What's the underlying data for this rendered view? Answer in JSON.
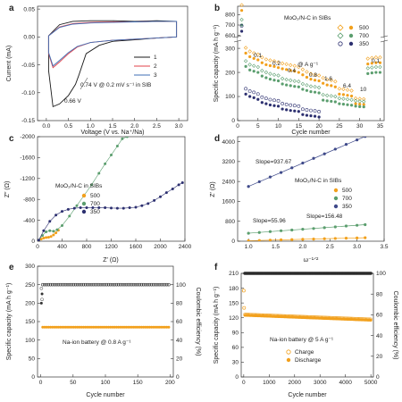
{
  "panels": [
    {
      "id": "a",
      "label": "a",
      "type": "line",
      "xlabel": "Voltage (V vs. Na⁺/Na)",
      "ylabel": "Current (mA)",
      "xlim": [
        -0.2,
        3.2
      ],
      "ylim": [
        -0.15,
        0.055
      ],
      "xticks": [
        0.0,
        0.5,
        1.0,
        1.5,
        2.0,
        2.5,
        3.0
      ],
      "yticks": [
        -0.15,
        -0.1,
        -0.05,
        0.0,
        0.05
      ],
      "ytick_labels": [
        "-0.15",
        "-0.10",
        "-0.05",
        "0.00",
        "0.05"
      ],
      "legend": [
        "1",
        "2",
        "3"
      ],
      "annotations": [
        "0.74 V @ 0.2 mV s⁻¹ in SIB",
        "0.66 V"
      ],
      "series": [
        {
          "name": "1",
          "color": "#1a1a1a",
          "x": [
            0.05,
            0.3,
            0.6,
            1.0,
            1.5,
            2.0,
            2.5,
            2.95,
            2.95,
            2.5,
            2.0,
            1.5,
            1.2,
            0.9,
            0.74,
            0.66,
            0.5,
            0.3,
            0.15,
            0.05
          ],
          "y": [
            0.002,
            0.022,
            0.028,
            0.029,
            0.029,
            0.028,
            0.029,
            0.028,
            0.0,
            -0.002,
            -0.005,
            -0.008,
            -0.015,
            -0.03,
            -0.068,
            -0.085,
            -0.105,
            -0.12,
            -0.125,
            -0.06
          ]
        },
        {
          "name": "2",
          "color": "#e0404a",
          "x": [
            0.05,
            0.3,
            0.6,
            1.0,
            1.5,
            2.0,
            2.5,
            2.95,
            2.95,
            2.5,
            2.0,
            1.5,
            1.0,
            0.7,
            0.5,
            0.3,
            0.15,
            0.05
          ],
          "y": [
            0.002,
            0.018,
            0.024,
            0.026,
            0.027,
            0.027,
            0.028,
            0.028,
            0.0,
            -0.002,
            -0.004,
            -0.006,
            -0.01,
            -0.018,
            -0.03,
            -0.045,
            -0.055,
            -0.03
          ]
        },
        {
          "name": "3",
          "color": "#3f6fb5",
          "x": [
            0.05,
            0.3,
            0.6,
            1.0,
            1.5,
            2.0,
            2.5,
            2.95,
            2.95,
            2.5,
            2.0,
            1.5,
            1.0,
            0.7,
            0.5,
            0.3,
            0.15,
            0.05
          ],
          "y": [
            0.002,
            0.017,
            0.023,
            0.025,
            0.026,
            0.027,
            0.028,
            0.028,
            0.0,
            -0.002,
            -0.004,
            -0.006,
            -0.01,
            -0.017,
            -0.028,
            -0.042,
            -0.052,
            -0.028
          ]
        }
      ]
    },
    {
      "id": "b",
      "label": "b",
      "type": "scatter",
      "xlabel": "Cycle number",
      "ylabel": "Specific capacity (mA h g⁻¹)",
      "xlim": [
        0,
        36
      ],
      "xticks": [
        0,
        5,
        10,
        15,
        20,
        25,
        30,
        35
      ],
      "yticks_lower": [
        0,
        100,
        200,
        300
      ],
      "yticks_upper": [
        600,
        700,
        800
      ],
      "legend_title": "MoO₂/N-C in SIBs",
      "legend": [
        "500",
        "700",
        "350"
      ],
      "rate_label": "@ A g⁻¹",
      "rate_annotations": [
        "0.1",
        "0.2",
        "0.4",
        "0.8",
        "1.6",
        "6.4",
        "10",
        "0.1"
      ],
      "series": [
        {
          "name": "500",
          "color": "#f2a01c",
          "x": [
            1,
            2,
            3,
            4,
            5,
            6,
            7,
            8,
            9,
            10,
            11,
            12,
            13,
            14,
            15,
            16,
            17,
            18,
            19,
            20,
            21,
            22,
            23,
            24,
            25,
            26,
            27,
            28,
            29,
            30,
            31,
            32,
            33,
            34,
            35
          ],
          "y": [
            840,
            280,
            265,
            258,
            252,
            240,
            232,
            228,
            225,
            220,
            215,
            212,
            208,
            205,
            200,
            190,
            180,
            172,
            168,
            165,
            155,
            148,
            145,
            140,
            110,
            108,
            105,
            102,
            70,
            68,
            67,
            235,
            238,
            240,
            240
          ]
        },
        {
          "name": "700",
          "color": "#5b9e6e",
          "x": [
            1,
            2,
            3,
            4,
            5,
            6,
            7,
            8,
            9,
            10,
            11,
            12,
            13,
            14,
            15,
            16,
            17,
            18,
            19,
            20,
            21,
            22,
            23,
            24,
            25,
            26,
            27,
            28,
            29,
            30,
            31,
            32,
            33,
            34,
            35
          ],
          "y": [
            700,
            225,
            210,
            205,
            200,
            185,
            178,
            172,
            168,
            165,
            152,
            148,
            145,
            142,
            140,
            130,
            125,
            120,
            118,
            115,
            85,
            82,
            80,
            78,
            70,
            68,
            66,
            64,
            60,
            58,
            57,
            195,
            198,
            200,
            200
          ]
        },
        {
          "name": "350",
          "color": "#2d3070",
          "x": [
            1,
            2,
            3,
            4,
            5,
            6,
            7,
            8,
            9,
            10,
            11,
            12,
            13,
            14,
            15,
            16,
            17,
            18,
            19,
            20
          ],
          "y": [
            640,
            110,
            100,
            95,
            88,
            75,
            70,
            65,
            62,
            60,
            48,
            45,
            42,
            40,
            38,
            25,
            22,
            20,
            18,
            15
          ]
        }
      ]
    },
    {
      "id": "c",
      "label": "c",
      "type": "scatter",
      "xlabel": "Z′ (Ω)",
      "ylabel": "Z″ (Ω)",
      "xlim": [
        0,
        2400
      ],
      "ylim": [
        0,
        -2000
      ],
      "xticks": [
        0,
        400,
        800,
        1200,
        1600,
        2000,
        2400
      ],
      "yticks": [
        0,
        -400,
        -800,
        -1200,
        -1600,
        -2000
      ],
      "legend_title": "MoO₂/N-C in SIBs",
      "legend": [
        "500",
        "700",
        "350"
      ],
      "series": [
        {
          "name": "500",
          "color": "#f2a01c",
          "x": [
            20,
            60,
            100,
            140,
            180,
            220,
            260,
            300,
            340
          ],
          "y": [
            -10,
            -40,
            -60,
            -70,
            -75,
            -90,
            -120,
            -160,
            -210
          ]
        },
        {
          "name": "700",
          "color": "#5b9e6e",
          "x": [
            20,
            80,
            140,
            200,
            260,
            320,
            400,
            520,
            640,
            760,
            880,
            1000,
            1100,
            1200,
            1300,
            1380,
            1460
          ],
          "y": [
            -20,
            -110,
            -180,
            -200,
            -190,
            -220,
            -300,
            -480,
            -680,
            -880,
            -1080,
            -1300,
            -1480,
            -1650,
            -1820,
            -1960,
            -2000
          ]
        },
        {
          "name": "350",
          "color": "#2d3070",
          "x": [
            20,
            100,
            200,
            300,
            400,
            500,
            600,
            700,
            800,
            900,
            1000,
            1100,
            1200,
            1300,
            1400,
            1500,
            1600,
            1700,
            1800,
            1900,
            2000,
            2100,
            2200,
            2300,
            2360
          ],
          "y": [
            -20,
            -200,
            -380,
            -500,
            -570,
            -610,
            -630,
            -640,
            -640,
            -640,
            -640,
            -640,
            -635,
            -630,
            -630,
            -640,
            -650,
            -680,
            -720,
            -780,
            -850,
            -930,
            -1000,
            -1080,
            -1120
          ]
        }
      ]
    },
    {
      "id": "d",
      "label": "d",
      "type": "line",
      "xlabel": "ω⁻¹ᐟ²",
      "ylabel": "Z′ (Ω)",
      "xlim": [
        0.8,
        3.5
      ],
      "ylim": [
        0,
        4200
      ],
      "xticks": [
        1.0,
        1.5,
        2.0,
        2.5,
        3.0,
        3.5
      ],
      "yticks": [
        0,
        800,
        1600,
        2400,
        3200,
        4000
      ],
      "legend_title": "MoO₂/N-C in SIBs",
      "legend": [
        "500",
        "700",
        "350"
      ],
      "slope_labels": [
        "Slope=937.67",
        "Slope=55.96",
        "Slope=156.48"
      ],
      "series": [
        {
          "name": "500",
          "color": "#f2a01c",
          "x": [
            1.0,
            1.2,
            1.4,
            1.6,
            1.8,
            2.0,
            2.2,
            2.4,
            2.6,
            2.8,
            3.0,
            3.15
          ],
          "y": [
            20,
            30,
            40,
            55,
            65,
            75,
            85,
            100,
            110,
            120,
            130,
            140
          ]
        },
        {
          "name": "700",
          "color": "#5b9e6e",
          "x": [
            1.0,
            1.2,
            1.4,
            1.6,
            1.8,
            2.0,
            2.2,
            2.4,
            2.6,
            2.8,
            3.0,
            3.15
          ],
          "y": [
            320,
            350,
            385,
            420,
            450,
            480,
            510,
            545,
            575,
            610,
            640,
            665
          ]
        },
        {
          "name": "350",
          "color": "#3f4a8a",
          "x": [
            1.0,
            1.2,
            1.4,
            1.6,
            1.8,
            2.0,
            2.2,
            2.4,
            2.6,
            2.8,
            3.0,
            3.15
          ],
          "y": [
            2200,
            2390,
            2580,
            2760,
            2950,
            3140,
            3330,
            3510,
            3700,
            3890,
            4070,
            4210
          ]
        }
      ]
    },
    {
      "id": "e",
      "label": "e",
      "type": "scatter",
      "xlabel": "Cycle number",
      "ylabel": "Specific capacity (mA h g⁻¹)",
      "ylabel_right": "Coulombic efficiency (%)",
      "xlim": [
        -5,
        205
      ],
      "ylim": [
        0,
        300
      ],
      "ylim_right": [
        0,
        120
      ],
      "xticks": [
        0,
        50,
        100,
        150,
        200
      ],
      "yticks": [
        0,
        50,
        100,
        150,
        200,
        250,
        300
      ],
      "yticks_right": [
        0,
        20,
        40,
        60,
        80,
        100
      ],
      "annotation": "Na-ion battery @ 0.8 A g⁻¹",
      "capacity": {
        "color": "#f2a01c",
        "first": [
          240,
          210
        ],
        "stable": 135
      },
      "efficiency": {
        "color": "#333333",
        "first": [
          80,
          90
        ],
        "stable": 100
      }
    },
    {
      "id": "f",
      "label": "f",
      "type": "scatter",
      "xlabel": "Cycle number",
      "ylabel": "Specific capacity (mA h g⁻¹)",
      "ylabel_right": "Coulombic efficiency (%)",
      "xlim": [
        -100,
        5100
      ],
      "ylim": [
        0,
        210
      ],
      "ylim_right": [
        0,
        100
      ],
      "xticks": [
        0,
        1000,
        2000,
        3000,
        4000,
        5000
      ],
      "yticks": [
        0,
        30,
        60,
        90,
        120,
        150,
        180,
        210
      ],
      "yticks_right": [
        0,
        20,
        40,
        60,
        80,
        100
      ],
      "annotation": "Na-ion battery @ 5 A g⁻¹",
      "legend": [
        "Charge",
        "Discharge"
      ],
      "capacity": {
        "color": "#f2a01c",
        "first": [
          175,
          140
        ],
        "start": 125,
        "end": 115
      },
      "efficiency": {
        "color": "#333333",
        "stable": 100
      }
    }
  ]
}
